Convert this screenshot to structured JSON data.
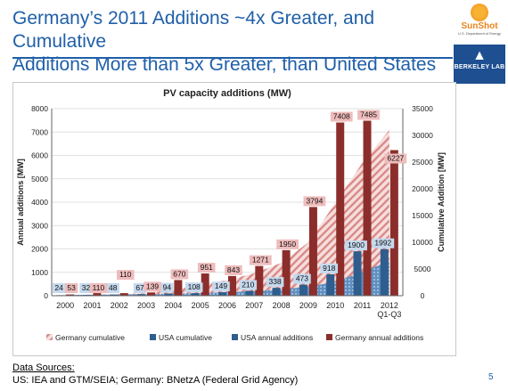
{
  "slide": {
    "title_line1": "Germany’s 2011 Additions ~4x Greater, and Cumulative",
    "title_line2": "Additions More than 5x Greater, than United States",
    "page_number": "5",
    "sources_heading": "Data Sources:",
    "sources_text": "US: IEA and GTM/SEIA; Germany: BNetzA (Federal Grid Agency)",
    "logos": {
      "sunshot_name": "SunShot",
      "sunshot_sub": "U.S. Department of Energy",
      "berkeley_mark": "▲",
      "berkeley_text": "BERKELEY LAB"
    }
  },
  "colors": {
    "title": "#1f5fa8",
    "germany": "#8b2e2b",
    "usa": "#2f5e8e",
    "germany_label_bg": "#efbcbc",
    "usa_label_bg": "#c5d9ee"
  },
  "chart_data": {
    "type": "bar",
    "title": "PV capacity additions (MW)",
    "ylabel": "Annual additions [MW]",
    "y2label": "Cumulative Addition [MW]",
    "categories": [
      "2000",
      "2001",
      "2002",
      "2003",
      "2004",
      "2005",
      "2006",
      "2007",
      "2008",
      "2009",
      "2010",
      "2011",
      "2012\nQ1-Q3"
    ],
    "ylim": [
      0,
      8000
    ],
    "yticks": [
      0,
      1000,
      2000,
      3000,
      4000,
      5000,
      6000,
      7000,
      8000
    ],
    "y2lim": [
      0,
      35000
    ],
    "y2ticks": [
      0,
      5000,
      10000,
      15000,
      20000,
      25000,
      30000,
      35000
    ],
    "grid": true,
    "legend_position": "bottom",
    "series": [
      {
        "name": "Germany cumulative",
        "kind": "area-hatched",
        "axis": "secondary",
        "values": [
          100,
          200,
          300,
          450,
          1100,
          2050,
          2900,
          4200,
          6150,
          9950,
          17350,
          24850,
          31000
        ]
      },
      {
        "name": "USA cumulative",
        "kind": "area-dotted",
        "axis": "secondary",
        "values": [
          140,
          172,
          220,
          287,
          381,
          489,
          638,
          848,
          1186,
          1659,
          2577,
          4477,
          6469
        ]
      },
      {
        "name": "USA annual additions",
        "kind": "bar",
        "axis": "primary",
        "values": [
          24,
          32,
          48,
          67,
          94,
          108,
          149,
          210,
          338,
          473,
          918,
          1900,
          1992
        ]
      },
      {
        "name": "Germany annual additions",
        "kind": "bar",
        "axis": "primary",
        "values": [
          53,
          110,
          110,
          139,
          670,
          951,
          843,
          1271,
          1950,
          3794,
          7408,
          7485,
          6227
        ]
      }
    ]
  }
}
